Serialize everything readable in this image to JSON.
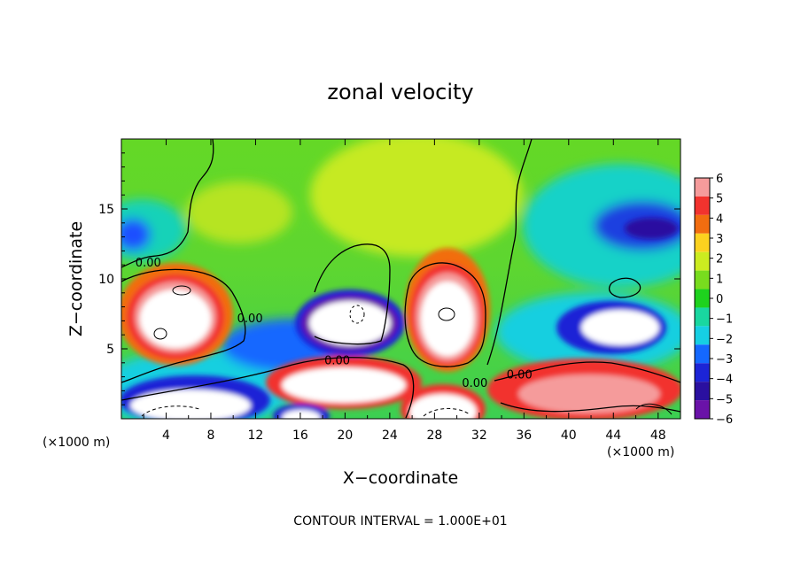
{
  "chart_data": {
    "type": "heatmap",
    "title": "zonal velocity",
    "xlabel": "X−coordinate",
    "ylabel": "Z−coordinate",
    "x_unit_left": "(×1000 m)",
    "x_unit_right": "(×1000 m)",
    "footer": "CONTOUR INTERVAL = 1.000E+01",
    "xlim": [
      0,
      50
    ],
    "ylim": [
      0,
      20
    ],
    "x_ticks": [
      "4",
      "8",
      "12",
      "16",
      "20",
      "24",
      "28",
      "32",
      "36",
      "40",
      "44",
      "48"
    ],
    "x_tick_values": [
      4,
      8,
      12,
      16,
      20,
      24,
      28,
      32,
      36,
      40,
      44,
      48
    ],
    "y_ticks": [
      "5",
      "10",
      "15"
    ],
    "y_tick_values": [
      5,
      10,
      15
    ],
    "colorbar": {
      "labels": [
        "6",
        "5",
        "4",
        "3",
        "2",
        "1",
        "0",
        "−1",
        "−2",
        "−3",
        "−4",
        "−5",
        "−6"
      ],
      "values": [
        6,
        5,
        4,
        3,
        2,
        1,
        0,
        -1,
        -2,
        -3,
        -4,
        -5,
        -6
      ],
      "colors": [
        "#f59b9b",
        "#f2332e",
        "#f26d10",
        "#fcd21f",
        "#ccec20",
        "#78dc1e",
        "#1ed21e",
        "#19d7a0",
        "#16cfe3",
        "#1468ff",
        "#1c24d6",
        "#2a10a0",
        "#6a12a8"
      ]
    },
    "contour_labels": [
      "0.00",
      "0.00",
      "0.00",
      "0.00",
      "0.00"
    ],
    "contour_label_positions": [
      [
        2.4,
        11.2
      ],
      [
        11.5,
        7.2
      ],
      [
        19.3,
        4.2
      ],
      [
        31.6,
        2.6
      ],
      [
        35.6,
        3.2
      ]
    ],
    "blobs": [
      {
        "name": "westerly-core-left",
        "x": 5.8,
        "z": 8.3,
        "value": 7
      },
      {
        "name": "westerly-core-center",
        "x": 29.2,
        "z": 7.8,
        "value": 7
      },
      {
        "name": "westerly-core-low-mid",
        "x": 20.5,
        "z": 2.7,
        "value": 7
      },
      {
        "name": "westerly-core-bottom-right",
        "x": 41.5,
        "z": 1.8,
        "value": 5
      },
      {
        "name": "easterly-core-mid",
        "x": 20.5,
        "z": 7.0,
        "value": -7
      },
      {
        "name": "easterly-core-right",
        "x": 43.0,
        "z": 6.7,
        "value": -7
      },
      {
        "name": "easterly-core-bottom-left",
        "x": 5.5,
        "z": 1.6,
        "value": -7
      },
      {
        "name": "easterly-core-upper-right",
        "x": 45.5,
        "z": 14.6,
        "value": -5
      }
    ]
  }
}
